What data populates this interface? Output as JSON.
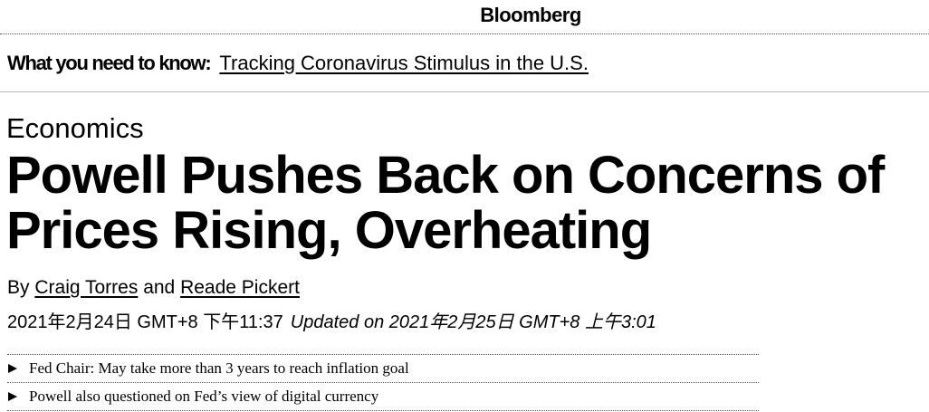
{
  "header": {
    "brand": "Bloomberg"
  },
  "banner": {
    "label": "What you need to know:",
    "link": "Tracking Coronavirus Stimulus in the U.S."
  },
  "article": {
    "section": "Economics",
    "headline": "Powell Pushes Back on Concerns of Prices Rising, Overheating",
    "byline": {
      "prefix": "By",
      "authors": [
        "Craig Torres",
        "Reade Pickert"
      ],
      "joiner": "and"
    },
    "published": "2021年2月24日 GMT+8 下午11:37",
    "updated": "Updated on 2021年2月25日 GMT+8 上午3:01",
    "bullets": [
      "Fed Chair: May take more than 3 years to reach inflation goal",
      "Powell also questioned on Fed’s view of digital currency"
    ]
  }
}
